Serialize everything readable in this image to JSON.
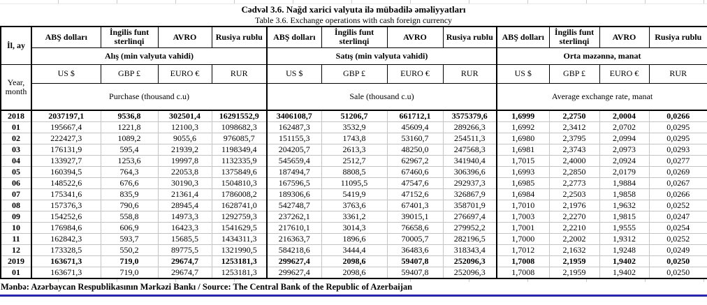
{
  "titles": {
    "az": "Cədvəl 3.6. Nağd xarici valyuta ilə mübadilə əməliyyatları",
    "en": "Table  3.6. Exchange operations with cash foreign currency"
  },
  "header": {
    "period_label_az": "İl, ay",
    "period_label_en": "Year, month",
    "currency_names_az": [
      "ABŞ dolları",
      "İngilis funt sterlinqi",
      "AVRO",
      "Rusiya rublu"
    ],
    "currency_codes": [
      "US $",
      "GBP £",
      "EURO €",
      "RUR"
    ],
    "groups_az": [
      "Alış (min valyuta vahidi)",
      "Satış (min valyuta vahidi)",
      "Orta məzənnə, manat"
    ],
    "groups_en": [
      "Purchase  (thousand c.u)",
      "Sale (thousand c.u)",
      "Average exchange rate, manat"
    ]
  },
  "rows": [
    {
      "period": "2018",
      "bold": true,
      "values": [
        "2037197,1",
        "9536,8",
        "302501,4",
        "16291552,9",
        "3406108,7",
        "51206,7",
        "661712,1",
        "3575379,6",
        "1,6999",
        "2,2750",
        "2,0004",
        "0,0266"
      ]
    },
    {
      "period": "01",
      "bold": false,
      "values": [
        "195667,4",
        "1221,8",
        "12100,3",
        "1098682,3",
        "162487,3",
        "3532,9",
        "45609,4",
        "289266,3",
        "1,6992",
        "2,3412",
        "2,0702",
        "0,0295"
      ]
    },
    {
      "period": "02",
      "bold": false,
      "values": [
        "222427,3",
        "1089,2",
        "9055,6",
        "976085,7",
        "151155,3",
        "1743,8",
        "53160,7",
        "254511,3",
        "1,6980",
        "2,3795",
        "2,0994",
        "0,0295"
      ]
    },
    {
      "period": "03",
      "bold": false,
      "values": [
        "176131,9",
        "595,4",
        "21939,2",
        "1198349,4",
        "204205,7",
        "2613,3",
        "48250,0",
        "247568,3",
        "1,6981",
        "2,3743",
        "2,0973",
        "0,0293"
      ]
    },
    {
      "period": "04",
      "bold": false,
      "values": [
        "133927,7",
        "1253,6",
        "19997,8",
        "1132335,9",
        "545659,4",
        "2512,7",
        "62967,2",
        "341940,4",
        "1,7015",
        "2,4000",
        "2,0924",
        "0,0277"
      ]
    },
    {
      "period": "05",
      "bold": false,
      "values": [
        "160394,5",
        "764,3",
        "22053,8",
        "1375849,6",
        "187494,7",
        "8808,5",
        "67460,6",
        "306396,6",
        "1,6993",
        "2,2850",
        "2,0179",
        "0,0269"
      ]
    },
    {
      "period": "06",
      "bold": false,
      "values": [
        "148522,6",
        "676,6",
        "30190,3",
        "1504810,3",
        "167596,5",
        "11095,5",
        "47547,6",
        "292937,3",
        "1,6985",
        "2,2773",
        "1,9884",
        "0,0267"
      ]
    },
    {
      "period": "07",
      "bold": false,
      "values": [
        "175341,6",
        "835,9",
        "21361,4",
        "1786008,2",
        "189306,6",
        "5419,9",
        "47152,6",
        "326867,9",
        "1,6984",
        "2,2503",
        "1,9858",
        "0,0266"
      ]
    },
    {
      "period": "08",
      "bold": false,
      "values": [
        "157376,3",
        "790,6",
        "28945,4",
        "1628741,0",
        "542748,7",
        "3763,6",
        "67401,3",
        "358701,9",
        "1,7010",
        "2,1976",
        "1,9632",
        "0,0252"
      ]
    },
    {
      "period": "09",
      "bold": false,
      "values": [
        "154252,6",
        "558,8",
        "14973,3",
        "1292759,3",
        "237262,1",
        "3361,2",
        "39015,1",
        "276697,4",
        "1,7003",
        "2,2270",
        "1,9815",
        "0,0247"
      ]
    },
    {
      "period": "10",
      "bold": false,
      "values": [
        "176984,6",
        "606,9",
        "16423,3",
        "1541629,5",
        "217610,1",
        "3014,3",
        "76658,6",
        "279952,2",
        "1,7001",
        "2,2210",
        "1,9555",
        "0,0254"
      ]
    },
    {
      "period": "11",
      "bold": false,
      "values": [
        "162842,3",
        "593,7",
        "15685,5",
        "1434311,3",
        "216363,7",
        "1896,6",
        "70005,7",
        "282196,5",
        "1,7000",
        "2,2002",
        "1,9312",
        "0,0252"
      ]
    },
    {
      "period": "12",
      "bold": false,
      "values": [
        "173328,5",
        "550,2",
        "89775,5",
        "1321990,5",
        "584218,6",
        "3444,4",
        "36483,6",
        "318343,4",
        "1,7012",
        "2,1632",
        "1,9248",
        "0,0249"
      ]
    },
    {
      "period": "2019",
      "bold": true,
      "values": [
        "163671,3",
        "719,0",
        "29674,7",
        "1253181,3",
        "299627,4",
        "2098,6",
        "59407,8",
        "252096,3",
        "1,7008",
        "2,1959",
        "1,9402",
        "0,0250"
      ]
    },
    {
      "period": "01",
      "bold": false,
      "values": [
        "163671,3",
        "719,0",
        "29674,7",
        "1253181,3",
        "299627,4",
        "2098,6",
        "59407,8",
        "252096,3",
        "1,7008",
        "2,1959",
        "1,9402",
        "0,0250"
      ]
    }
  ],
  "footer": {
    "source": "Mənbə: Azərbaycan Respublikasının Mərkəzi Bankı / Source: The Central Bank of the Republic of Azerbaijan"
  },
  "colors": {
    "source_underline": "#2222cc"
  }
}
